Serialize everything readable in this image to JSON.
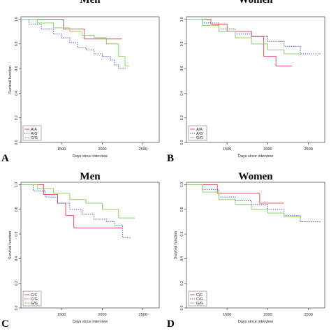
{
  "chart_data": [
    {
      "type": "line",
      "panel": "A",
      "title": "Men",
      "xlabel": "Days since interview",
      "ylabel": "Survival function",
      "xlim": [
        1000,
        2700
      ],
      "ylim": [
        0,
        1.02
      ],
      "xticks": [
        1500,
        2000,
        2500
      ],
      "yticks": [
        0,
        0.2,
        0.4,
        0.6,
        0.8,
        1.0
      ],
      "ytick_labels": [
        "0.0",
        "0.2",
        "0.4",
        "0.6",
        "0.8",
        "1.0"
      ],
      "legend": "bottom-left",
      "series": [
        {
          "name": "A/A",
          "color": "#e8505b",
          "dash": "solid",
          "x": [
            1000,
            1520,
            1520,
            1780,
            1780,
            2240
          ],
          "y": [
            1.0,
            1.0,
            0.92,
            0.92,
            0.84,
            0.84
          ]
        },
        {
          "name": "A/G",
          "color": "#4a5fc1",
          "dash": "dotted",
          "x": [
            1000,
            1100,
            1250,
            1400,
            1500,
            1600,
            1700,
            1800,
            1900,
            2000,
            2100,
            2150,
            2200,
            2300
          ],
          "y": [
            1.0,
            0.96,
            0.92,
            0.88,
            0.85,
            0.81,
            0.77,
            0.75,
            0.72,
            0.7,
            0.67,
            0.63,
            0.6,
            0.6
          ]
        },
        {
          "name": "G/G",
          "color": "#8fcf6a",
          "dash": "solid",
          "x": [
            1000,
            1200,
            1400,
            1600,
            1750,
            1900,
            2050,
            2200,
            2280,
            2330
          ],
          "y": [
            1.0,
            0.97,
            0.93,
            0.9,
            0.87,
            0.85,
            0.8,
            0.7,
            0.62,
            0.62
          ]
        }
      ]
    },
    {
      "type": "line",
      "panel": "B",
      "title": "Women",
      "xlabel": "Days since interview",
      "ylabel": "",
      "xlim": [
        1000,
        2700
      ],
      "ylim": [
        0,
        1.02
      ],
      "xticks": [
        1500,
        2000,
        2500
      ],
      "yticks": [
        0,
        0.2,
        0.4,
        0.6,
        0.8,
        1.0
      ],
      "ytick_labels": [
        "0.0",
        "0.2",
        "0.4",
        "0.6",
        "0.8",
        "1.0"
      ],
      "legend": "bottom-left",
      "series": [
        {
          "name": "A/A",
          "color": "#e8505b",
          "dash": "solid",
          "x": [
            1000,
            1300,
            1500,
            1800,
            1950,
            2100,
            2300
          ],
          "y": [
            1.0,
            0.96,
            0.9,
            0.86,
            0.7,
            0.62,
            0.62
          ]
        },
        {
          "name": "A/G",
          "color": "#4a5fc1",
          "dash": "dotted",
          "x": [
            1000,
            1200,
            1400,
            1600,
            1800,
            2000,
            2200,
            2400,
            2650
          ],
          "y": [
            1.0,
            0.97,
            0.92,
            0.88,
            0.86,
            0.82,
            0.78,
            0.72,
            0.72
          ]
        },
        {
          "name": "G/G",
          "color": "#8fcf6a",
          "dash": "solid",
          "x": [
            1000,
            1200,
            1400,
            1600,
            1800,
            2000,
            2200,
            2400
          ],
          "y": [
            1.0,
            0.95,
            0.9,
            0.85,
            0.8,
            0.75,
            0.72,
            0.7
          ]
        }
      ]
    },
    {
      "type": "line",
      "panel": "C",
      "title": "Men",
      "xlabel": "Days since interview",
      "ylabel": "Survival function",
      "xlim": [
        1000,
        2700
      ],
      "ylim": [
        0,
        1.02
      ],
      "xticks": [
        1500,
        2000,
        2500
      ],
      "yticks": [
        0,
        0.2,
        0.4,
        0.6,
        0.8,
        1.0
      ],
      "ytick_labels": [
        "0.0",
        "0.2",
        "0.4",
        "0.6",
        "0.8",
        "1.0"
      ],
      "legend": "bottom-left",
      "series": [
        {
          "name": "C/C",
          "color": "#e8505b",
          "dash": "solid",
          "x": [
            1000,
            1280,
            1280,
            1450,
            1450,
            1550,
            1550,
            1650,
            1650,
            2250
          ],
          "y": [
            1.0,
            1.0,
            0.92,
            0.92,
            0.85,
            0.85,
            0.75,
            0.75,
            0.65,
            0.65
          ]
        },
        {
          "name": "C/G",
          "color": "#4a5fc1",
          "dash": "dotted",
          "x": [
            1000,
            1150,
            1300,
            1450,
            1600,
            1750,
            1900,
            2050,
            2150,
            2250,
            2350
          ],
          "y": [
            1.0,
            0.95,
            0.9,
            0.85,
            0.8,
            0.76,
            0.72,
            0.7,
            0.67,
            0.57,
            0.57
          ]
        },
        {
          "name": "G/G",
          "color": "#8fcf6a",
          "dash": "solid",
          "x": [
            1000,
            1200,
            1400,
            1600,
            1800,
            2000,
            2200,
            2400
          ],
          "y": [
            1.0,
            0.97,
            0.93,
            0.88,
            0.85,
            0.8,
            0.73,
            0.73
          ]
        }
      ]
    },
    {
      "type": "line",
      "panel": "D",
      "title": "Women",
      "xlabel": "Days since interview",
      "ylabel": "Survival function",
      "xlim": [
        1000,
        2700
      ],
      "ylim": [
        0,
        1.02
      ],
      "xticks": [
        1500,
        2000,
        2500
      ],
      "yticks": [
        0,
        0.2,
        0.4,
        0.6,
        0.8,
        1.0
      ],
      "ytick_labels": [
        "0.0",
        "0.2",
        "0.4",
        "0.6",
        "0.8",
        "1.0"
      ],
      "legend": "bottom-left",
      "series": [
        {
          "name": "C/C",
          "color": "#e8505b",
          "dash": "solid",
          "x": [
            1000,
            1380,
            1380,
            1900,
            1900,
            2200
          ],
          "y": [
            1.0,
            1.0,
            0.93,
            0.93,
            0.85,
            0.85
          ]
        },
        {
          "name": "C/G",
          "color": "#4a5fc1",
          "dash": "dotted",
          "x": [
            1000,
            1200,
            1400,
            1600,
            1800,
            2000,
            2200,
            2400,
            2650
          ],
          "y": [
            1.0,
            0.96,
            0.9,
            0.87,
            0.84,
            0.8,
            0.75,
            0.7,
            0.7
          ]
        },
        {
          "name": "G/G",
          "color": "#8fcf6a",
          "dash": "solid",
          "x": [
            1000,
            1200,
            1400,
            1600,
            1800,
            2000,
            2200,
            2400
          ],
          "y": [
            1.0,
            0.94,
            0.88,
            0.84,
            0.8,
            0.77,
            0.74,
            0.71
          ]
        }
      ]
    }
  ]
}
